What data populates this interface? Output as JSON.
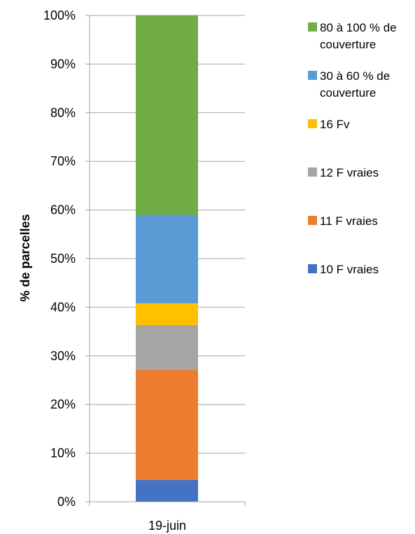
{
  "chart_data": {
    "type": "bar",
    "stacked": true,
    "categories": [
      "19-juin"
    ],
    "ylabel": "% de parcelles",
    "xlabel": "",
    "ylim": [
      0,
      100
    ],
    "y_tick_format": "percent",
    "y_ticks": [
      "0%",
      "10%",
      "20%",
      "30%",
      "40%",
      "50%",
      "60%",
      "70%",
      "80%",
      "90%",
      "100%"
    ],
    "grid": true,
    "legend_position": "right",
    "series": [
      {
        "name": "10 F vraies",
        "color": "#4472C4",
        "values": [
          4.5
        ]
      },
      {
        "name": "11 F vraies",
        "color": "#ED7D31",
        "values": [
          22.7
        ]
      },
      {
        "name": "12 F vraies",
        "color": "#A5A5A5",
        "values": [
          9.1
        ]
      },
      {
        "name": "16 Fv",
        "color": "#FFC000",
        "values": [
          4.5
        ]
      },
      {
        "name": "30 à 60 % de couverture",
        "color": "#5B9BD5",
        "values": [
          18.2
        ]
      },
      {
        "name": "80 à 100 % de couverture",
        "color": "#70AD47",
        "values": [
          41.0
        ]
      }
    ]
  }
}
